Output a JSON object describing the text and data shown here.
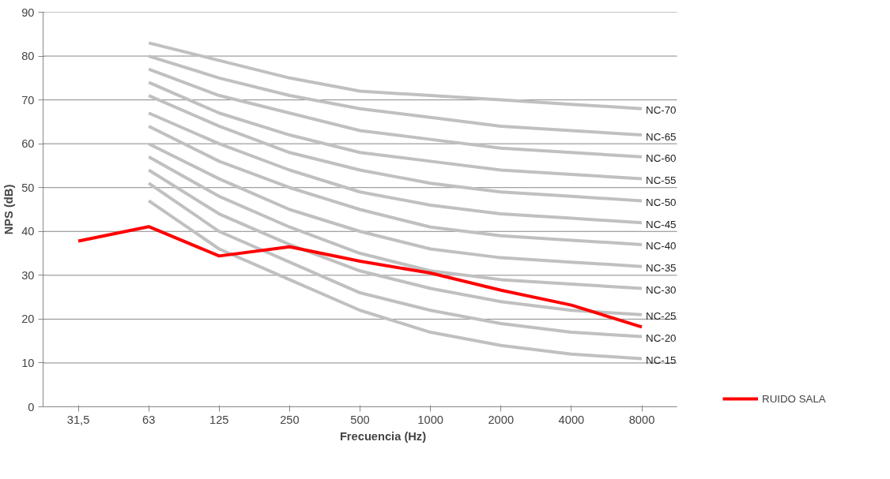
{
  "chart_data": {
    "type": "line",
    "xlabel": "Frecuencia (Hz)",
    "ylabel": "NPS (dB)",
    "categories": [
      "31,5",
      "63",
      "125",
      "250",
      "500",
      "1000",
      "2000",
      "4000",
      "8000"
    ],
    "ylim": [
      0,
      90
    ],
    "yticks": [
      0,
      10,
      20,
      30,
      40,
      50,
      60,
      70,
      80,
      90
    ],
    "grid": "y",
    "legend": "right",
    "marker": "none",
    "line_style": "solid",
    "series": [
      {
        "name": "NC-70",
        "color": "#c0c0c0",
        "values": [
          null,
          83,
          79,
          75,
          72,
          71,
          70,
          69,
          68
        ]
      },
      {
        "name": "NC-65",
        "color": "#c0c0c0",
        "values": [
          null,
          80,
          75,
          71,
          68,
          66,
          64,
          63,
          62
        ]
      },
      {
        "name": "NC-60",
        "color": "#c0c0c0",
        "values": [
          null,
          77,
          71,
          67,
          63,
          61,
          59,
          58,
          57
        ]
      },
      {
        "name": "NC-55",
        "color": "#c0c0c0",
        "values": [
          null,
          74,
          67,
          62,
          58,
          56,
          54,
          53,
          52
        ]
      },
      {
        "name": "NC-50",
        "color": "#c0c0c0",
        "values": [
          null,
          71,
          64,
          58,
          54,
          51,
          49,
          48,
          47
        ]
      },
      {
        "name": "NC-45",
        "color": "#c0c0c0",
        "values": [
          null,
          67,
          60,
          54,
          49,
          46,
          44,
          43,
          42
        ]
      },
      {
        "name": "NC-40",
        "color": "#c0c0c0",
        "values": [
          null,
          64,
          56,
          50,
          45,
          41,
          39,
          38,
          37
        ]
      },
      {
        "name": "NC-35",
        "color": "#c0c0c0",
        "values": [
          null,
          60,
          52,
          45,
          40,
          36,
          34,
          33,
          32
        ]
      },
      {
        "name": "NC-30",
        "color": "#c0c0c0",
        "values": [
          null,
          57,
          48,
          41,
          35,
          31,
          29,
          28,
          27
        ]
      },
      {
        "name": "NC-25",
        "color": "#c0c0c0",
        "values": [
          null,
          54,
          44,
          37,
          31,
          27,
          24,
          22,
          21
        ]
      },
      {
        "name": "NC-20",
        "color": "#c0c0c0",
        "values": [
          null,
          51,
          40,
          33,
          26,
          22,
          19,
          17,
          16
        ]
      },
      {
        "name": "NC-15",
        "color": "#c0c0c0",
        "values": [
          null,
          47,
          36,
          29,
          22,
          17,
          14,
          12,
          11
        ]
      },
      {
        "name": "RUIDO SALA",
        "color": "#ff0000",
        "values": [
          37.8,
          41.1,
          34.4,
          36.5,
          33.2,
          30.5,
          26.6,
          23.2,
          18.2
        ]
      }
    ]
  }
}
